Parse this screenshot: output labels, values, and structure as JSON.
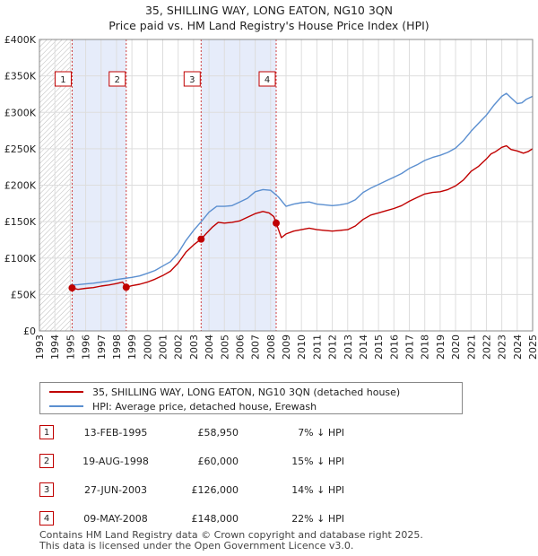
{
  "header": {
    "title_line1": "35, SHILLING WAY, LONG EATON, NG10 3QN",
    "title_line2": "Price paid vs. HM Land Registry's House Price Index (HPI)"
  },
  "colors": {
    "price_line": "#c00000",
    "hpi_line": "#5b8fd0",
    "shade": "#e6ecfa",
    "grid": "#dddddd",
    "vline": "#d04040"
  },
  "legend": {
    "price_label": "35, SHILLING WAY, LONG EATON, NG10 3QN (detached house)",
    "hpi_label": "HPI: Average price, detached house, Erewash"
  },
  "chart_data": {
    "type": "line",
    "title": "35, SHILLING WAY, LONG EATON, NG10 3QN - Price paid vs. HM Land Registry's House Price Index (HPI)",
    "xlim": [
      1993,
      2025
    ],
    "ylim": [
      0,
      400000
    ],
    "x_ticks": [
      "1993",
      "1994",
      "1995",
      "1996",
      "1997",
      "1998",
      "1999",
      "2000",
      "2001",
      "2002",
      "2003",
      "2004",
      "2005",
      "2006",
      "2007",
      "2008",
      "2009",
      "2010",
      "2011",
      "2012",
      "2013",
      "2014",
      "2015",
      "2016",
      "2017",
      "2018",
      "2019",
      "2020",
      "2021",
      "2022",
      "2023",
      "2024",
      "2025"
    ],
    "y_ticks": [
      {
        "value": 0,
        "label": "£0"
      },
      {
        "value": 50000,
        "label": "£50K"
      },
      {
        "value": 100000,
        "label": "£100K"
      },
      {
        "value": 150000,
        "label": "£150K"
      },
      {
        "value": 200000,
        "label": "£200K"
      },
      {
        "value": 250000,
        "label": "£250K"
      },
      {
        "value": 300000,
        "label": "£300K"
      },
      {
        "value": 350000,
        "label": "£350K"
      },
      {
        "value": 400000,
        "label": "£400K"
      }
    ],
    "series": [
      {
        "name": "35, SHILLING WAY, LONG EATON, NG10 3QN (detached house)",
        "x": [
          1995.12,
          1995.5,
          1996,
          1996.5,
          1997,
          1997.5,
          1998,
          1998.4,
          1998.63,
          1999,
          1999.5,
          2000,
          2000.5,
          2001,
          2001.5,
          2002,
          2002.5,
          2003,
          2003.49,
          2003.8,
          2004.2,
          2004.6,
          2005,
          2005.5,
          2006,
          2006.5,
          2007,
          2007.5,
          2007.9,
          2008.2,
          2008.36,
          2008.7,
          2009,
          2009.5,
          2010,
          2010.5,
          2011,
          2011.5,
          2012,
          2012.5,
          2013,
          2013.5,
          2014,
          2014.5,
          2015,
          2015.5,
          2016,
          2016.5,
          2017,
          2017.5,
          2018,
          2018.5,
          2019,
          2019.5,
          2020,
          2020.5,
          2021,
          2021.5,
          2022,
          2022.3,
          2022.6,
          2023,
          2023.3,
          2023.6,
          2024,
          2024.4,
          2024.7,
          2025
        ],
        "values": [
          58950,
          57000,
          58500,
          59500,
          61500,
          63000,
          65000,
          67000,
          60000,
          62000,
          64000,
          67000,
          71000,
          76000,
          82000,
          93000,
          108000,
          118000,
          126000,
          133000,
          142000,
          149000,
          148000,
          149000,
          151000,
          156000,
          161000,
          164000,
          162000,
          157000,
          148000,
          128000,
          133000,
          137000,
          139000,
          141000,
          139000,
          138000,
          137000,
          138000,
          139000,
          144000,
          153000,
          159000,
          162000,
          165000,
          168000,
          172000,
          178000,
          183000,
          188000,
          190000,
          191000,
          194000,
          199000,
          207000,
          219000,
          226000,
          236000,
          243000,
          246000,
          252000,
          254000,
          249000,
          247000,
          244000,
          246000,
          250000
        ]
      },
      {
        "name": "HPI: Average price, detached house, Erewash",
        "x": [
          1995,
          1995.5,
          1996,
          1996.5,
          1997,
          1997.5,
          1998,
          1998.5,
          1999,
          1999.5,
          2000,
          2000.5,
          2001,
          2001.5,
          2002,
          2002.5,
          2003,
          2003.5,
          2004,
          2004.5,
          2005,
          2005.5,
          2006,
          2006.5,
          2007,
          2007.5,
          2008,
          2008.5,
          2009,
          2009.5,
          2010,
          2010.5,
          2011,
          2011.5,
          2012,
          2012.5,
          2013,
          2013.5,
          2014,
          2014.5,
          2015,
          2015.5,
          2016,
          2016.5,
          2017,
          2017.5,
          2018,
          2018.5,
          2019,
          2019.5,
          2020,
          2020.5,
          2021,
          2021.5,
          2022,
          2022.5,
          2023,
          2023.3,
          2023.6,
          2024,
          2024.3,
          2024.6,
          2025
        ],
        "values": [
          63000,
          63500,
          64500,
          65500,
          67000,
          68500,
          70500,
          72000,
          73500,
          75500,
          79000,
          83000,
          89000,
          95000,
          107000,
          124000,
          138000,
          150000,
          163000,
          171000,
          171000,
          172000,
          177000,
          182000,
          191000,
          194000,
          193000,
          184000,
          171000,
          174000,
          176000,
          177000,
          174000,
          173000,
          172000,
          173000,
          175000,
          180000,
          190000,
          196000,
          201000,
          206000,
          211000,
          216000,
          223000,
          228000,
          234000,
          238000,
          241000,
          245000,
          251000,
          261000,
          274000,
          285000,
          296000,
          310000,
          322000,
          326000,
          320000,
          312000,
          313000,
          318000,
          322000
        ]
      }
    ],
    "sales": [
      {
        "num": "1",
        "year": 1995.12,
        "price": 58950
      },
      {
        "num": "2",
        "year": 1998.63,
        "price": 60000
      },
      {
        "num": "3",
        "year": 2003.49,
        "price": 126000
      },
      {
        "num": "4",
        "year": 2008.36,
        "price": 148000
      }
    ],
    "shaded_ranges": [
      [
        1995.12,
        1998.63
      ],
      [
        2003.49,
        2008.36
      ]
    ],
    "hatched_range": [
      1993,
      1995.12
    ],
    "legend_position": "bottom"
  },
  "sales_table": [
    {
      "num": "1",
      "date": "13-FEB-1995",
      "price": "£58,950",
      "hpi": "7% ↓ HPI"
    },
    {
      "num": "2",
      "date": "19-AUG-1998",
      "price": "£60,000",
      "hpi": "15% ↓ HPI"
    },
    {
      "num": "3",
      "date": "27-JUN-2003",
      "price": "£126,000",
      "hpi": "14% ↓ HPI"
    },
    {
      "num": "4",
      "date": "09-MAY-2008",
      "price": "£148,000",
      "hpi": "22% ↓ HPI"
    }
  ],
  "footer": {
    "line1": "Contains HM Land Registry data © Crown copyright and database right 2025.",
    "line2": "This data is licensed under the Open Government Licence v3.0."
  }
}
